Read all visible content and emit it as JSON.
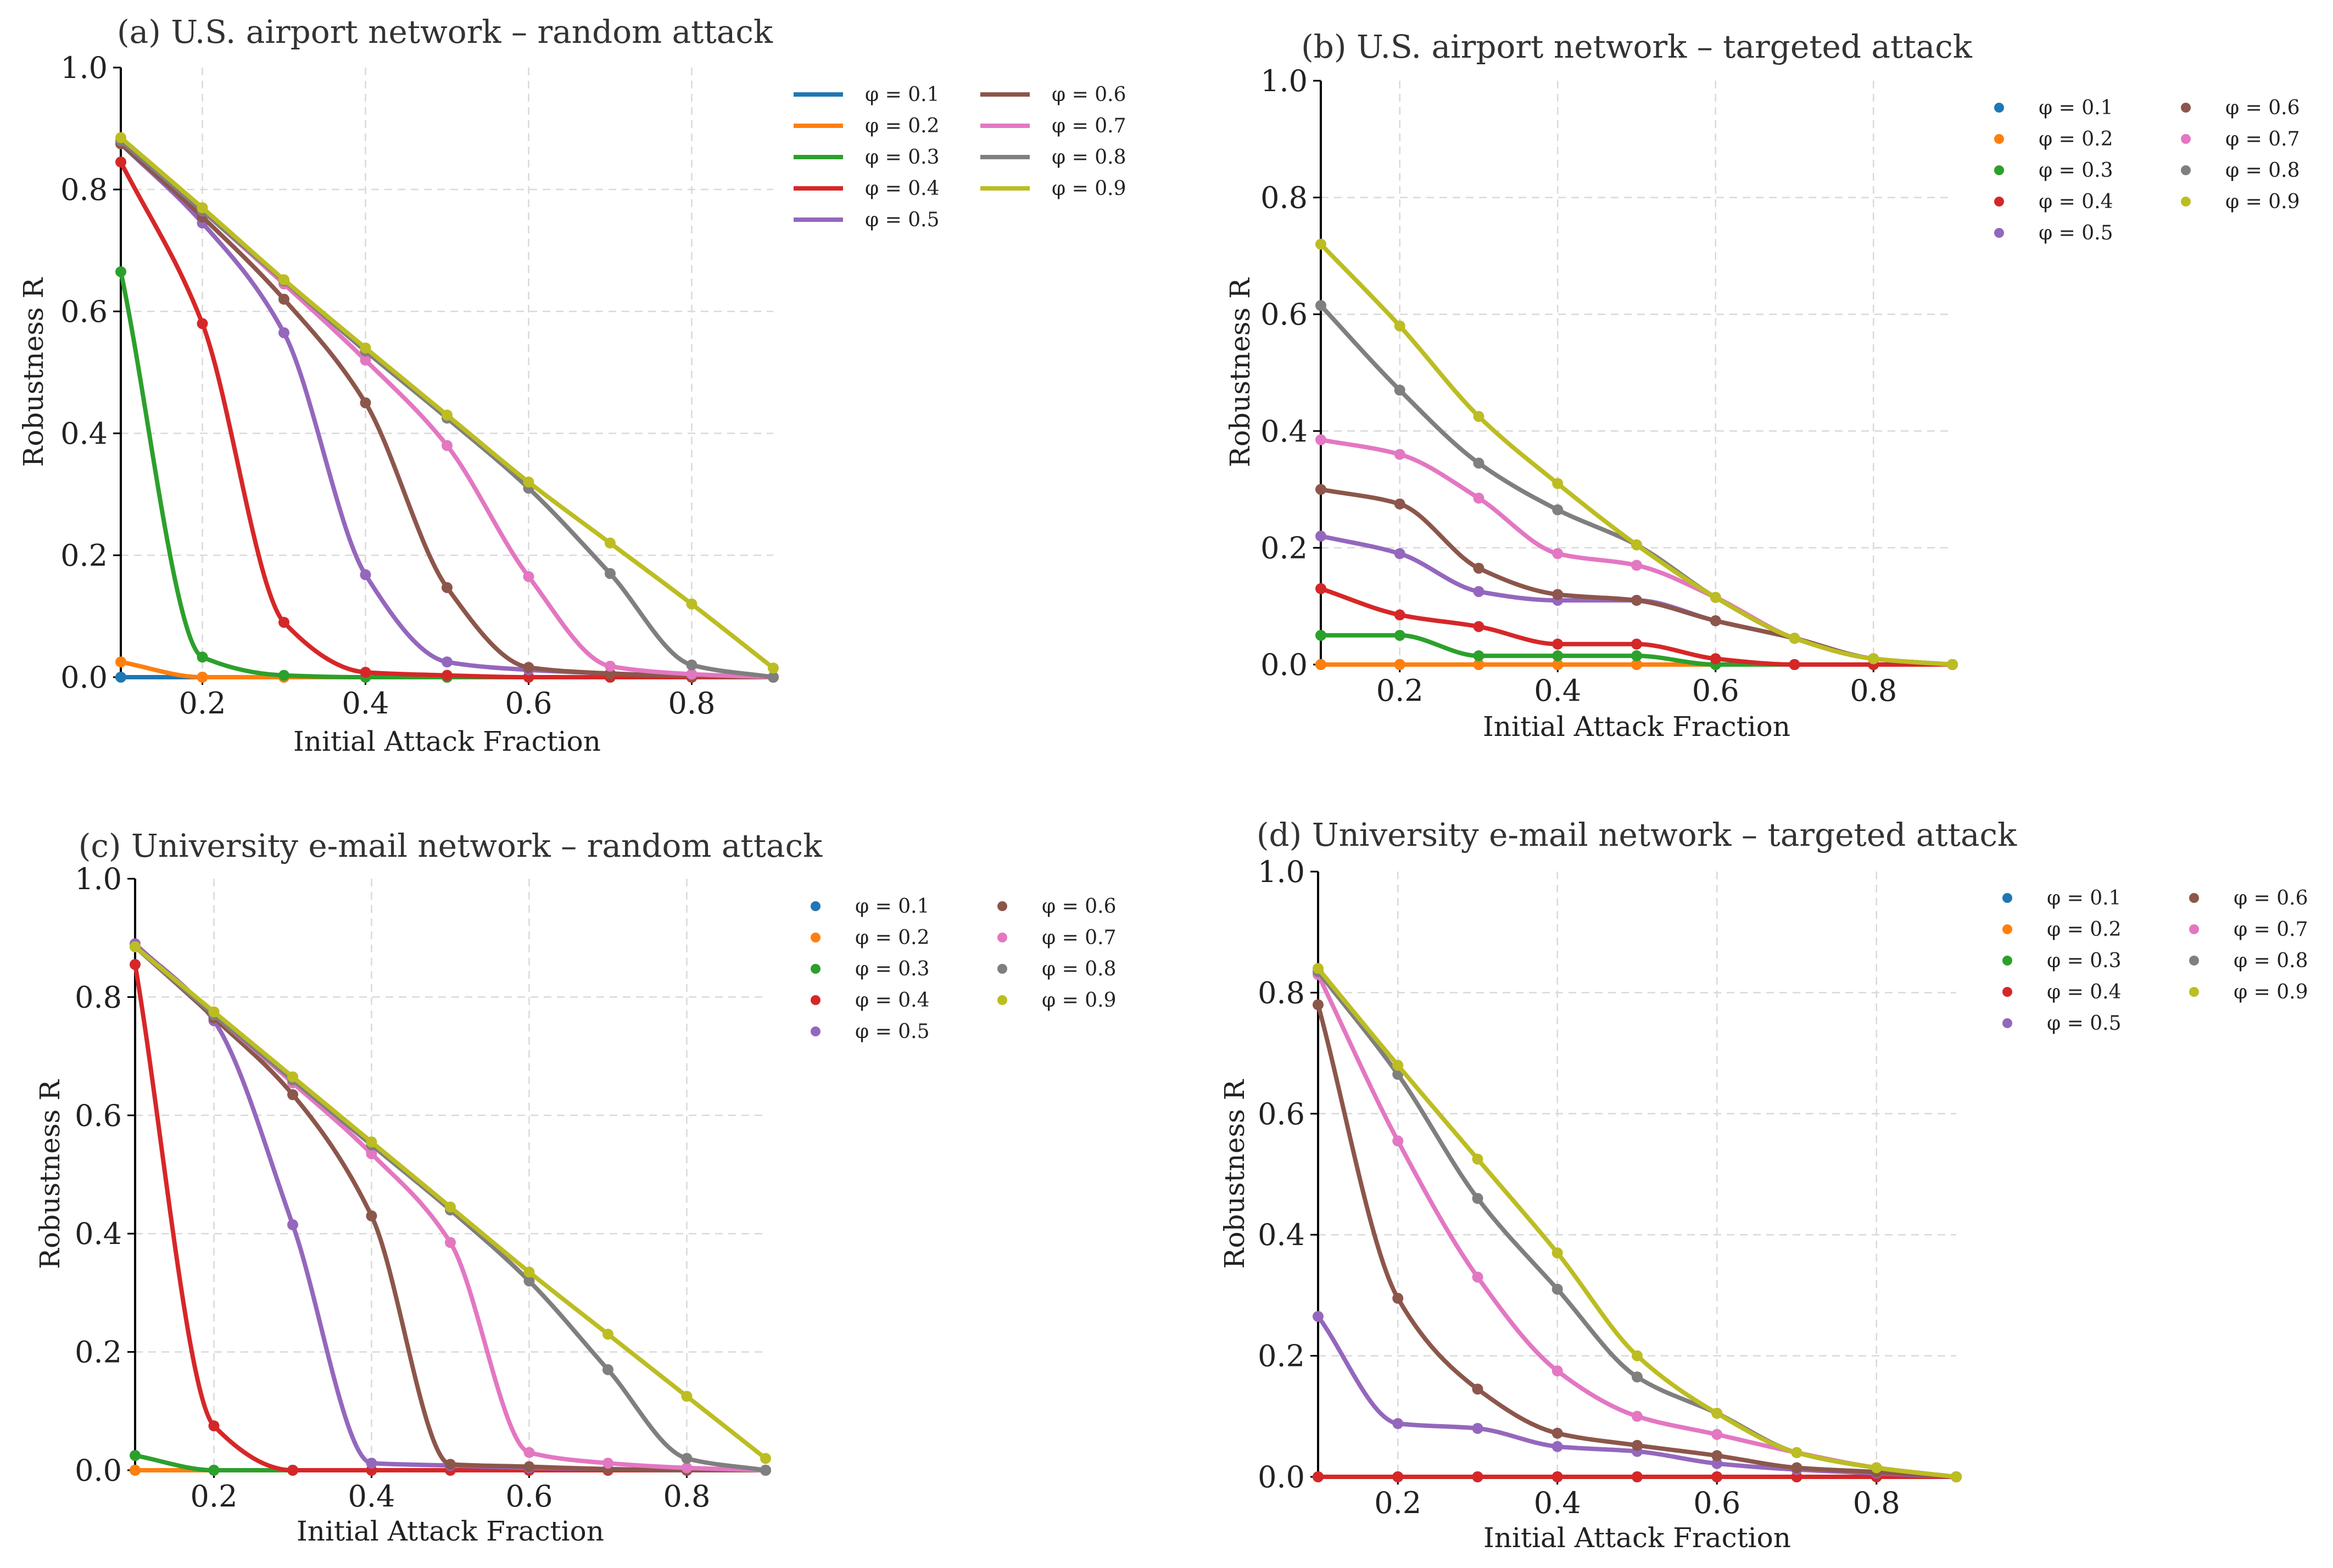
{
  "chart_data": [
    {
      "type": "line",
      "title": "(a) U.S. airport network – random attack",
      "xlabel": "Initial Attack Fraction",
      "ylabel": "Robustness R",
      "xlim": [
        0.1,
        0.9
      ],
      "ylim": [
        0.0,
        1.0
      ],
      "xticks": [
        "0.2",
        "0.4",
        "0.6",
        "0.8"
      ],
      "yticks": [
        "0.0",
        "0.2",
        "0.4",
        "0.6",
        "0.8",
        "1.0"
      ],
      "grid": true,
      "legend_style": "line",
      "legend_position": "right",
      "x": [
        0.1,
        0.2,
        0.3,
        0.4,
        0.5,
        0.6,
        0.7,
        0.8,
        0.9
      ],
      "series": [
        {
          "name": "φ = 0.1",
          "color": "#1f77b4",
          "values": [
            0.0,
            0.0,
            0.0,
            0.0,
            0.0,
            0.0,
            0.0,
            0.0,
            0.0
          ]
        },
        {
          "name": "φ = 0.2",
          "color": "#ff7f0e",
          "values": [
            0.025,
            0.0,
            0.0,
            0.0,
            0.0,
            0.0,
            0.0,
            0.0,
            0.0
          ]
        },
        {
          "name": "φ = 0.3",
          "color": "#2ca02c",
          "values": [
            0.665,
            0.033,
            0.003,
            0.0,
            0.0,
            0.0,
            0.0,
            0.0,
            0.0
          ]
        },
        {
          "name": "φ = 0.4",
          "color": "#d62728",
          "values": [
            0.845,
            0.58,
            0.09,
            0.008,
            0.003,
            0.0,
            0.0,
            0.0,
            0.0
          ]
        },
        {
          "name": "φ = 0.5",
          "color": "#9467bd",
          "values": [
            0.875,
            0.745,
            0.565,
            0.168,
            0.025,
            0.012,
            0.006,
            0.002,
            0.0
          ]
        },
        {
          "name": "φ = 0.6",
          "color": "#8c564b",
          "values": [
            0.875,
            0.755,
            0.62,
            0.45,
            0.147,
            0.016,
            0.006,
            0.002,
            0.0
          ]
        },
        {
          "name": "φ = 0.7",
          "color": "#e377c2",
          "values": [
            0.88,
            0.765,
            0.645,
            0.52,
            0.38,
            0.165,
            0.018,
            0.005,
            0.0
          ]
        },
        {
          "name": "φ = 0.8",
          "color": "#7f7f7f",
          "values": [
            0.88,
            0.765,
            0.65,
            0.535,
            0.425,
            0.31,
            0.17,
            0.02,
            0.0
          ]
        },
        {
          "name": "φ = 0.9",
          "color": "#bcbd22",
          "values": [
            0.885,
            0.77,
            0.652,
            0.54,
            0.43,
            0.32,
            0.22,
            0.12,
            0.015
          ]
        }
      ]
    },
    {
      "type": "line",
      "title": "(b) U.S. airport network – targeted attack",
      "xlabel": "Initial Attack Fraction",
      "ylabel": "Robustness R",
      "xlim": [
        0.1,
        0.9
      ],
      "ylim": [
        0.0,
        1.0
      ],
      "xticks": [
        "0.2",
        "0.4",
        "0.6",
        "0.8"
      ],
      "yticks": [
        "0.0",
        "0.2",
        "0.4",
        "0.6",
        "0.8",
        "1.0"
      ],
      "grid": true,
      "legend_style": "dot",
      "legend_position": "right",
      "x": [
        0.1,
        0.2,
        0.3,
        0.4,
        0.5,
        0.6,
        0.7,
        0.8,
        0.9
      ],
      "series": [
        {
          "name": "φ = 0.1",
          "color": "#1f77b4",
          "values": [
            0.0,
            0.0,
            0.0,
            0.0,
            0.0,
            0.0,
            0.0,
            0.0,
            0.0
          ]
        },
        {
          "name": "φ = 0.2",
          "color": "#ff7f0e",
          "values": [
            0.0,
            0.0,
            0.0,
            0.0,
            0.0,
            0.0,
            0.0,
            0.0,
            0.0
          ]
        },
        {
          "name": "φ = 0.3",
          "color": "#2ca02c",
          "values": [
            0.05,
            0.05,
            0.015,
            0.015,
            0.015,
            0.0,
            0.0,
            0.0,
            0.0
          ]
        },
        {
          "name": "φ = 0.4",
          "color": "#d62728",
          "values": [
            0.13,
            0.085,
            0.065,
            0.035,
            0.035,
            0.01,
            0.0,
            0.0,
            0.0
          ]
        },
        {
          "name": "φ = 0.5",
          "color": "#9467bd",
          "values": [
            0.22,
            0.19,
            0.125,
            0.11,
            0.11,
            0.075,
            0.045,
            0.01,
            0.0
          ]
        },
        {
          "name": "φ = 0.6",
          "color": "#8c564b",
          "values": [
            0.3,
            0.275,
            0.165,
            0.12,
            0.11,
            0.075,
            0.045,
            0.01,
            0.0
          ]
        },
        {
          "name": "φ = 0.7",
          "color": "#e377c2",
          "values": [
            0.385,
            0.36,
            0.285,
            0.19,
            0.17,
            0.115,
            0.045,
            0.01,
            0.0
          ]
        },
        {
          "name": "φ = 0.8",
          "color": "#7f7f7f",
          "values": [
            0.615,
            0.47,
            0.345,
            0.265,
            0.205,
            0.115,
            0.045,
            0.01,
            0.0
          ]
        },
        {
          "name": "φ = 0.9",
          "color": "#bcbd22",
          "values": [
            0.72,
            0.58,
            0.425,
            0.31,
            0.205,
            0.115,
            0.045,
            0.01,
            0.0
          ]
        }
      ]
    },
    {
      "type": "line",
      "title": "(c) University e-mail network – random attack",
      "xlabel": "Initial Attack Fraction",
      "ylabel": "Robustness R",
      "xlim": [
        0.1,
        0.9
      ],
      "ylim": [
        0.0,
        1.0
      ],
      "xticks": [
        "0.2",
        "0.4",
        "0.6",
        "0.8"
      ],
      "yticks": [
        "0.0",
        "0.2",
        "0.4",
        "0.6",
        "0.8",
        "1.0"
      ],
      "grid": true,
      "legend_style": "dot",
      "legend_position": "right",
      "x": [
        0.1,
        0.2,
        0.3,
        0.4,
        0.5,
        0.6,
        0.7,
        0.8,
        0.9
      ],
      "series": [
        {
          "name": "φ = 0.1",
          "color": "#1f77b4",
          "values": [
            0.0,
            0.0,
            0.0,
            0.0,
            0.0,
            0.0,
            0.0,
            0.0,
            0.0
          ]
        },
        {
          "name": "φ = 0.2",
          "color": "#ff7f0e",
          "values": [
            0.0,
            0.0,
            0.0,
            0.0,
            0.0,
            0.0,
            0.0,
            0.0,
            0.0
          ]
        },
        {
          "name": "φ = 0.3",
          "color": "#2ca02c",
          "values": [
            0.025,
            0.0,
            0.0,
            0.0,
            0.0,
            0.0,
            0.0,
            0.0,
            0.0
          ]
        },
        {
          "name": "φ = 0.4",
          "color": "#d62728",
          "values": [
            0.855,
            0.075,
            0.0,
            0.0,
            0.0,
            0.0,
            0.0,
            0.0,
            0.0
          ]
        },
        {
          "name": "φ = 0.5",
          "color": "#9467bd",
          "values": [
            0.89,
            0.76,
            0.415,
            0.012,
            0.008,
            0.004,
            0.002,
            0.0,
            0.0
          ]
        },
        {
          "name": "φ = 0.6",
          "color": "#8c564b",
          "values": [
            0.885,
            0.765,
            0.635,
            0.43,
            0.01,
            0.006,
            0.002,
            0.0,
            0.0
          ]
        },
        {
          "name": "φ = 0.7",
          "color": "#e377c2",
          "values": [
            0.885,
            0.77,
            0.655,
            0.535,
            0.385,
            0.03,
            0.012,
            0.004,
            0.0
          ]
        },
        {
          "name": "φ = 0.8",
          "color": "#7f7f7f",
          "values": [
            0.885,
            0.77,
            0.66,
            0.55,
            0.44,
            0.32,
            0.17,
            0.02,
            0.0
          ]
        },
        {
          "name": "φ = 0.9",
          "color": "#bcbd22",
          "values": [
            0.885,
            0.775,
            0.665,
            0.555,
            0.445,
            0.335,
            0.23,
            0.125,
            0.02
          ]
        }
      ]
    },
    {
      "type": "line",
      "title": "(d) University e-mail network – targeted attack",
      "xlabel": "Initial Attack Fraction",
      "ylabel": "Robustness R",
      "xlim": [
        0.1,
        0.9
      ],
      "ylim": [
        0.0,
        1.0
      ],
      "xticks": [
        "0.2",
        "0.4",
        "0.6",
        "0.8"
      ],
      "yticks": [
        "0.0",
        "0.2",
        "0.4",
        "0.6",
        "0.8",
        "1.0"
      ],
      "grid": true,
      "legend_style": "dot",
      "legend_position": "right",
      "x": [
        0.1,
        0.2,
        0.3,
        0.4,
        0.5,
        0.6,
        0.7,
        0.8,
        0.9
      ],
      "series": [
        {
          "name": "φ = 0.1",
          "color": "#1f77b4",
          "values": [
            0.0,
            0.0,
            0.0,
            0.0,
            0.0,
            0.0,
            0.0,
            0.0,
            0.0
          ]
        },
        {
          "name": "φ = 0.2",
          "color": "#ff7f0e",
          "values": [
            0.0,
            0.0,
            0.0,
            0.0,
            0.0,
            0.0,
            0.0,
            0.0,
            0.0
          ]
        },
        {
          "name": "φ = 0.3",
          "color": "#2ca02c",
          "values": [
            0.0,
            0.0,
            0.0,
            0.0,
            0.0,
            0.0,
            0.0,
            0.0,
            0.0
          ]
        },
        {
          "name": "φ = 0.4",
          "color": "#d62728",
          "values": [
            0.0,
            0.0,
            0.0,
            0.0,
            0.0,
            0.0,
            0.0,
            0.0,
            0.0
          ]
        },
        {
          "name": "φ = 0.5",
          "color": "#9467bd",
          "values": [
            0.265,
            0.088,
            0.08,
            0.05,
            0.042,
            0.022,
            0.012,
            0.006,
            0.0
          ]
        },
        {
          "name": "φ = 0.6",
          "color": "#8c564b",
          "values": [
            0.78,
            0.295,
            0.145,
            0.072,
            0.052,
            0.035,
            0.015,
            0.008,
            0.0
          ]
        },
        {
          "name": "φ = 0.7",
          "color": "#e377c2",
          "values": [
            0.83,
            0.555,
            0.33,
            0.175,
            0.1,
            0.07,
            0.04,
            0.015,
            0.0
          ]
        },
        {
          "name": "φ = 0.8",
          "color": "#7f7f7f",
          "values": [
            0.835,
            0.665,
            0.46,
            0.31,
            0.165,
            0.105,
            0.04,
            0.015,
            0.0
          ]
        },
        {
          "name": "φ = 0.9",
          "color": "#bcbd22",
          "values": [
            0.84,
            0.68,
            0.525,
            0.37,
            0.2,
            0.105,
            0.04,
            0.015,
            0.0
          ]
        }
      ]
    }
  ]
}
